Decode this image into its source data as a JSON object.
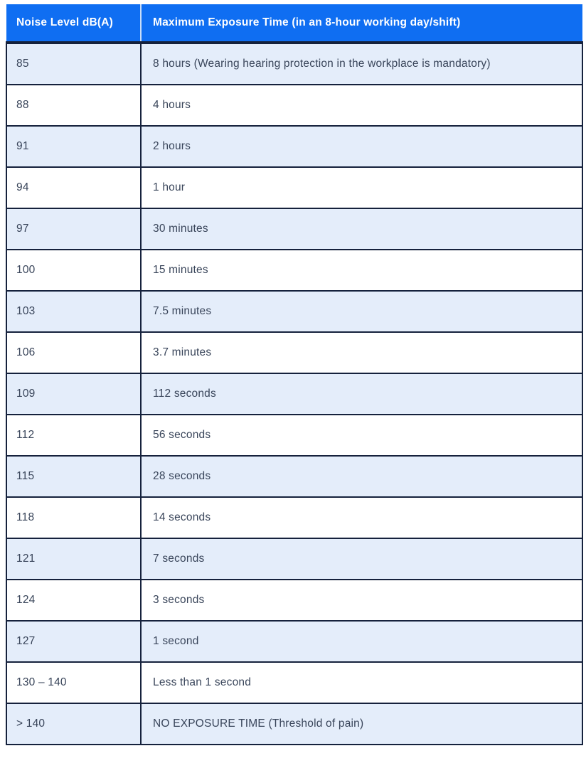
{
  "chart_data": {
    "type": "table",
    "columns": [
      "Noise Level dB(A)",
      "Maximum Exposure Time (in an 8-hour working day/shift)"
    ],
    "rows": [
      [
        "85",
        "8 hours (Wearing hearing protection in the workplace is mandatory)"
      ],
      [
        "88",
        "4 hours"
      ],
      [
        "91",
        "2 hours"
      ],
      [
        "94",
        "1 hour"
      ],
      [
        "97",
        "30 minutes"
      ],
      [
        "100",
        "15 minutes"
      ],
      [
        "103",
        "7.5 minutes"
      ],
      [
        "106",
        "3.7 minutes"
      ],
      [
        "109",
        "112 seconds"
      ],
      [
        "112",
        "56 seconds"
      ],
      [
        "115",
        "28 seconds"
      ],
      [
        "118",
        "14 seconds"
      ],
      [
        "121",
        "7 seconds"
      ],
      [
        "124",
        "3 seconds"
      ],
      [
        "127",
        "1 second"
      ],
      [
        "130 – 140",
        "Less than 1 second"
      ],
      [
        "> 140",
        "NO EXPOSURE TIME (Threshold of pain)"
      ]
    ],
    "layout_hints": {
      "striped_rows": true,
      "first_data_row_shaded": true
    },
    "colors": {
      "header_bg": "#0F6EF2",
      "header_text": "#FFFFFF",
      "header_divider": "#C9DDF8",
      "row_shaded_bg": "#E4EDFA",
      "row_plain_bg": "#FFFFFF",
      "border": "#15213C",
      "body_text": "#39455A"
    }
  }
}
